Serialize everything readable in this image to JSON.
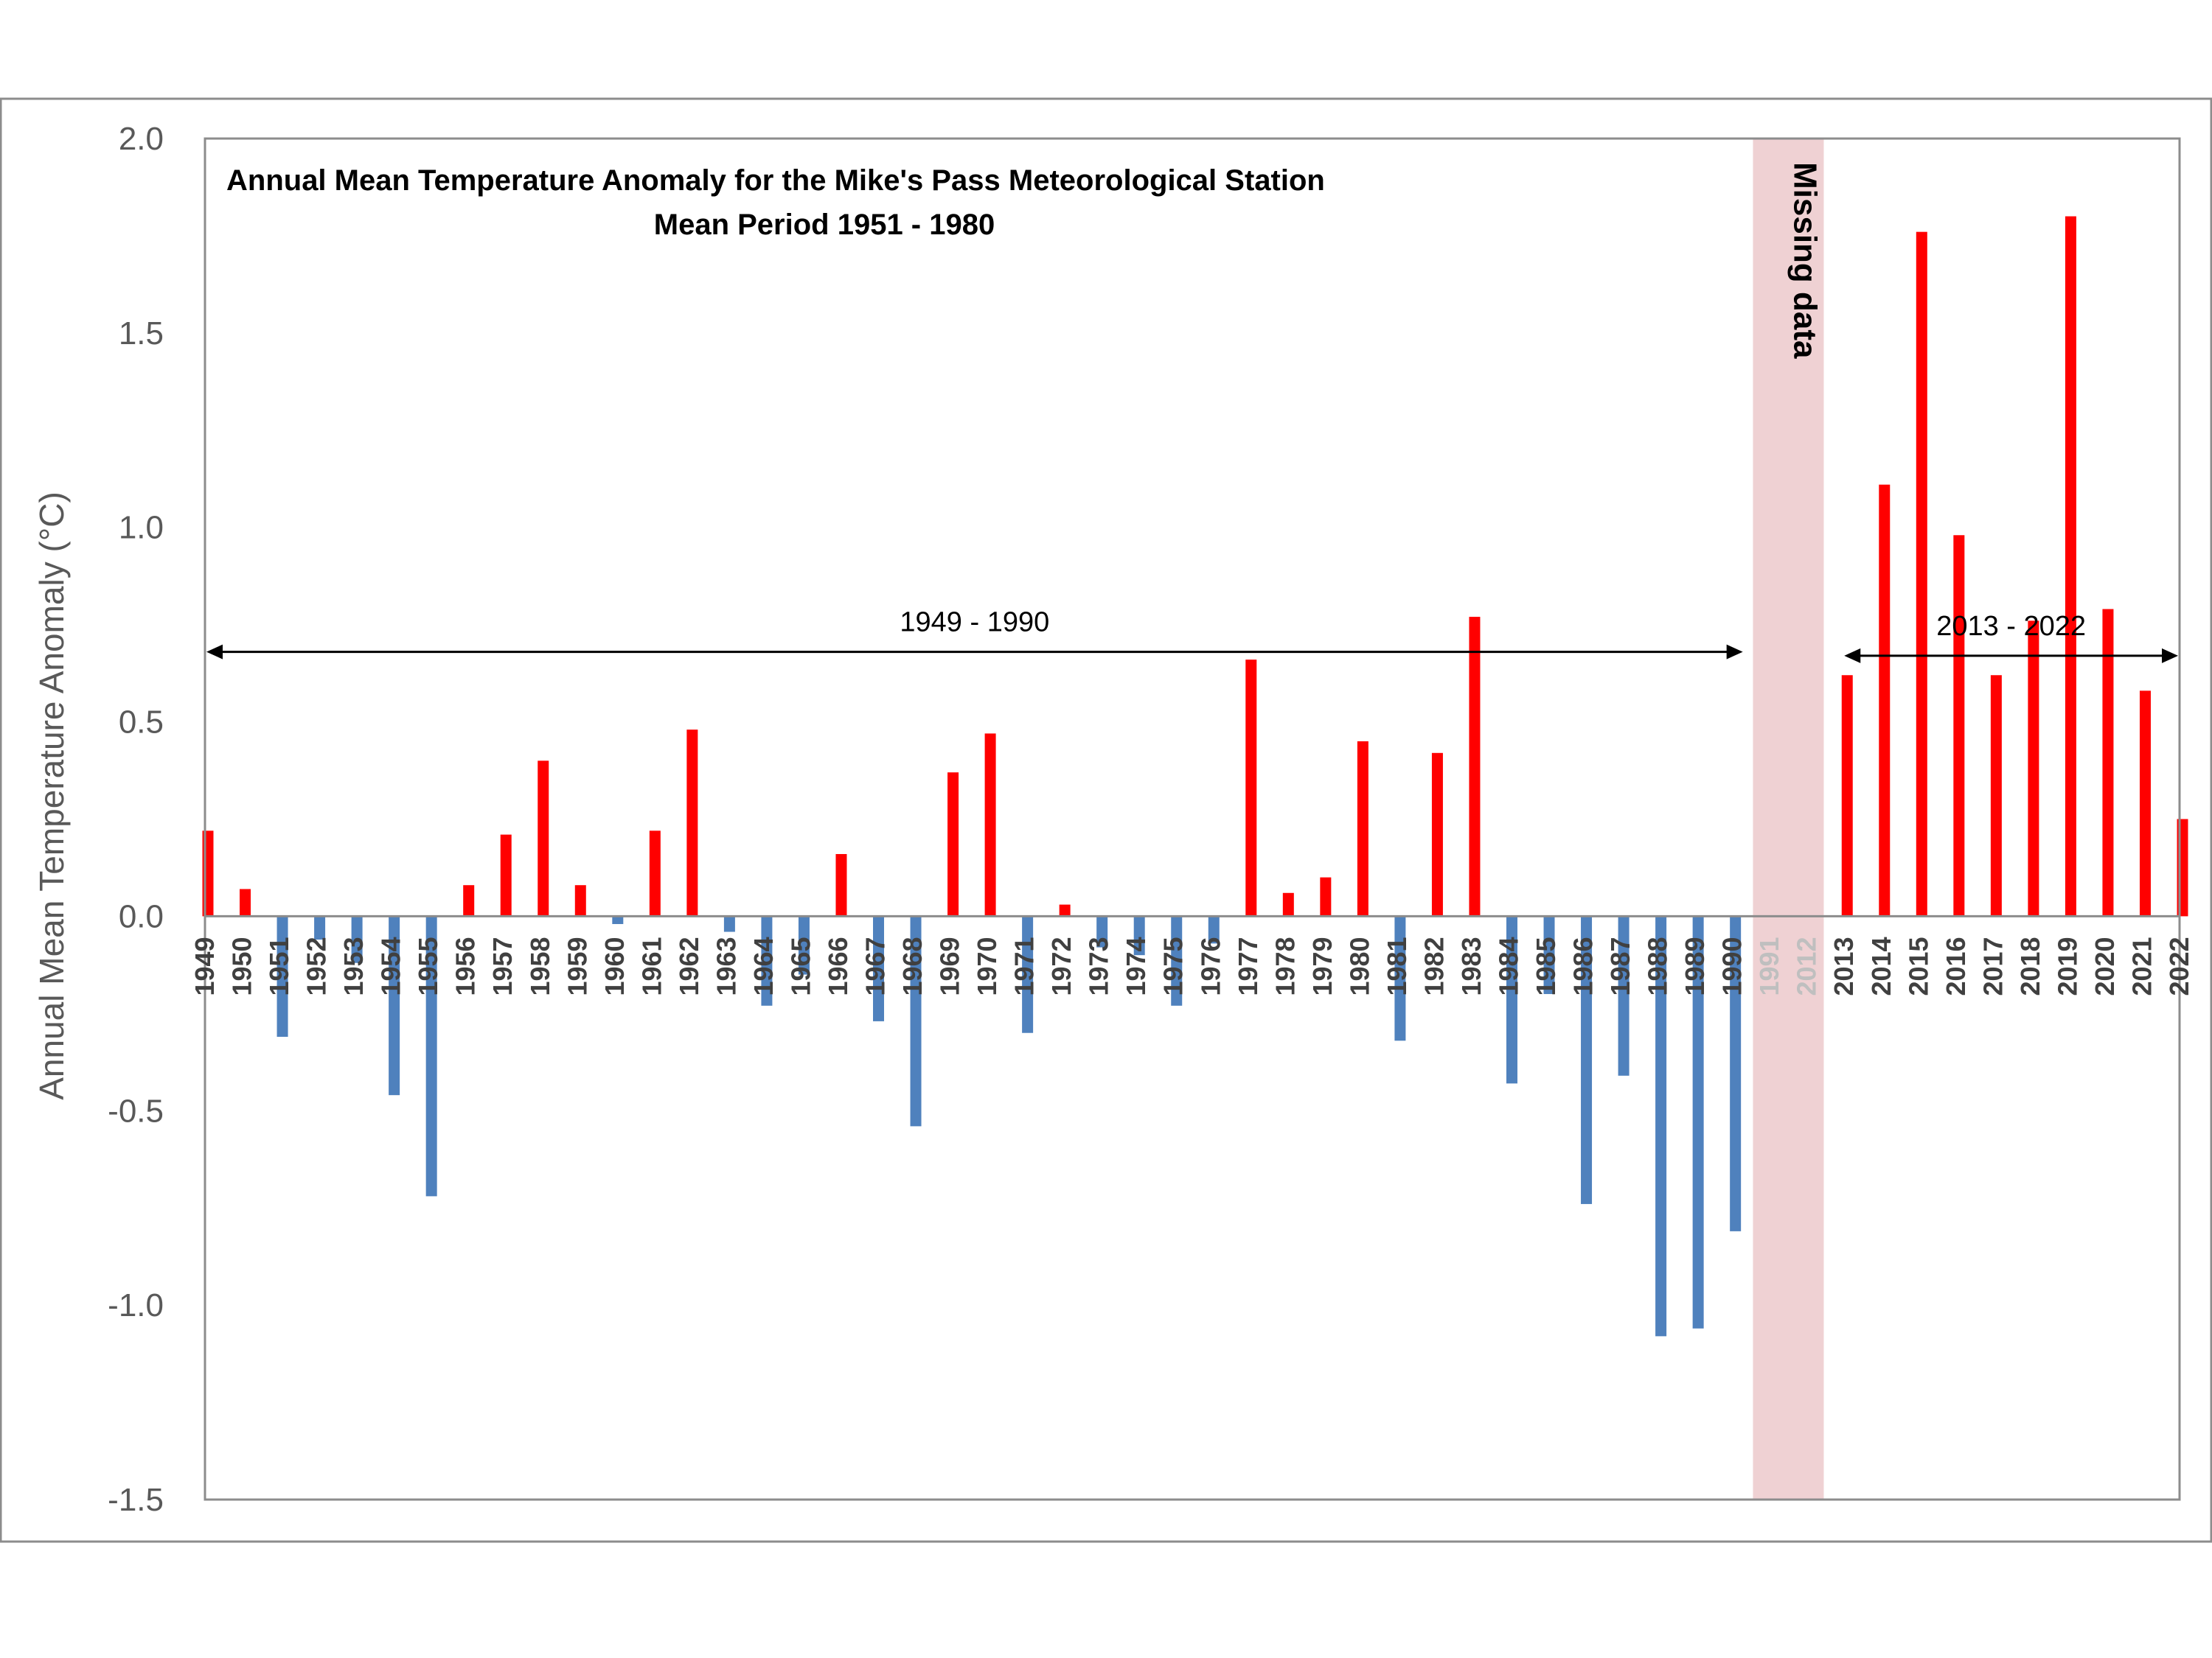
{
  "chart_data": {
    "type": "bar",
    "title": "Annual Mean Temperature Anomaly for the Mike's Pass Meteorological Station",
    "subtitle": "Mean Period 1951 - 1980",
    "ylabel": "Annual Mean Temperature Anomaly (°C)",
    "ylim": [
      -1.5,
      2.0
    ],
    "yticks": [
      "2.0",
      "1.5",
      "1.0",
      "0.5",
      "0.0",
      "-0.5",
      "-1.0",
      "-1.5"
    ],
    "categories": [
      "1949",
      "1950",
      "1951",
      "1952",
      "1953",
      "1954",
      "1955",
      "1956",
      "1957",
      "1958",
      "1959",
      "1960",
      "1961",
      "1962",
      "1963",
      "1964",
      "1965",
      "1966",
      "1967",
      "1968",
      "1969",
      "1970",
      "1971",
      "1972",
      "1973",
      "1974",
      "1975",
      "1976",
      "1977",
      "1978",
      "1979",
      "1980",
      "1981",
      "1982",
      "1983",
      "1984",
      "1985",
      "1986",
      "1987",
      "1988",
      "1989",
      "1990",
      "1991",
      "2012",
      "2013",
      "2014",
      "2015",
      "2016",
      "2017",
      "2018",
      "2019",
      "2020",
      "2021",
      "2022"
    ],
    "values": [
      0.22,
      0.07,
      -0.31,
      -0.06,
      -0.12,
      -0.46,
      -0.72,
      0.08,
      0.21,
      0.4,
      0.08,
      -0.02,
      0.22,
      0.48,
      -0.04,
      -0.23,
      -0.15,
      0.16,
      -0.27,
      -0.54,
      0.37,
      0.47,
      -0.3,
      0.03,
      -0.08,
      -0.1,
      -0.23,
      -0.07,
      0.66,
      0.06,
      0.1,
      0.45,
      -0.32,
      0.42,
      0.77,
      -0.43,
      -0.2,
      -0.74,
      -0.41,
      -1.08,
      -1.06,
      -0.81,
      null,
      null,
      0.62,
      1.11,
      1.76,
      0.98,
      0.62,
      0.76,
      1.8,
      0.79,
      0.58,
      0.25
    ],
    "positive_color": "#ff0000",
    "negative_color": "#4f81bd",
    "missing_band": {
      "from": "1991",
      "to": "2012",
      "label": "Missing data",
      "color": "#efd1d3"
    },
    "annotations": [
      {
        "label": "1949 - 1990",
        "from": "1949",
        "to": "1990",
        "y": 0.68
      },
      {
        "label": "2013 - 2022",
        "from": "2013",
        "to": "2022",
        "y": 0.67
      }
    ],
    "grid": false
  }
}
